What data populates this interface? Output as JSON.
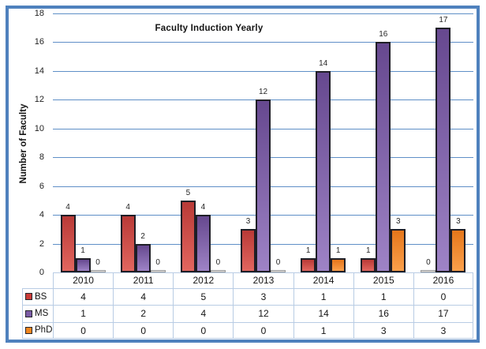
{
  "chart_data": {
    "type": "bar",
    "title": "Faculty Induction Yearly",
    "xlabel": "",
    "ylabel": "Number of Faculty",
    "categories": [
      "2010",
      "2011",
      "2012",
      "2013",
      "2014",
      "2015",
      "2016"
    ],
    "series": [
      {
        "name": "BS",
        "values": [
          4,
          4,
          5,
          3,
          1,
          1,
          0
        ],
        "gradient_top": "#B93A37",
        "gradient_bottom": "#E2665F",
        "key_color": "#CB3B38"
      },
      {
        "name": "MS",
        "values": [
          1,
          2,
          4,
          12,
          14,
          16,
          17
        ],
        "gradient_top": "#66488F",
        "gradient_bottom": "#9E83C6",
        "key_color": "#7A5BA5"
      },
      {
        "name": "PhD",
        "values": [
          0,
          0,
          0,
          0,
          1,
          3,
          3
        ],
        "gradient_top": "#E4761B",
        "gradient_bottom": "#FBA04B",
        "key_color": "#F1861F"
      }
    ],
    "ylim": [
      0,
      18
    ],
    "yticks": [
      0,
      2,
      4,
      6,
      8,
      10,
      12,
      14,
      16,
      18
    ],
    "grid": true,
    "data_labels": true,
    "legend_position": "data-table-left",
    "bar_border_color": "#1E1E26",
    "zero_bar": {
      "fill": "#E3E3E3",
      "border": "#9B9B9B"
    }
  },
  "frame": {
    "border_color": "#4F81BD"
  },
  "colors": {
    "gridline": "#5F8FC7",
    "table_border": "#B8CCE4",
    "label_text": "#262626"
  }
}
